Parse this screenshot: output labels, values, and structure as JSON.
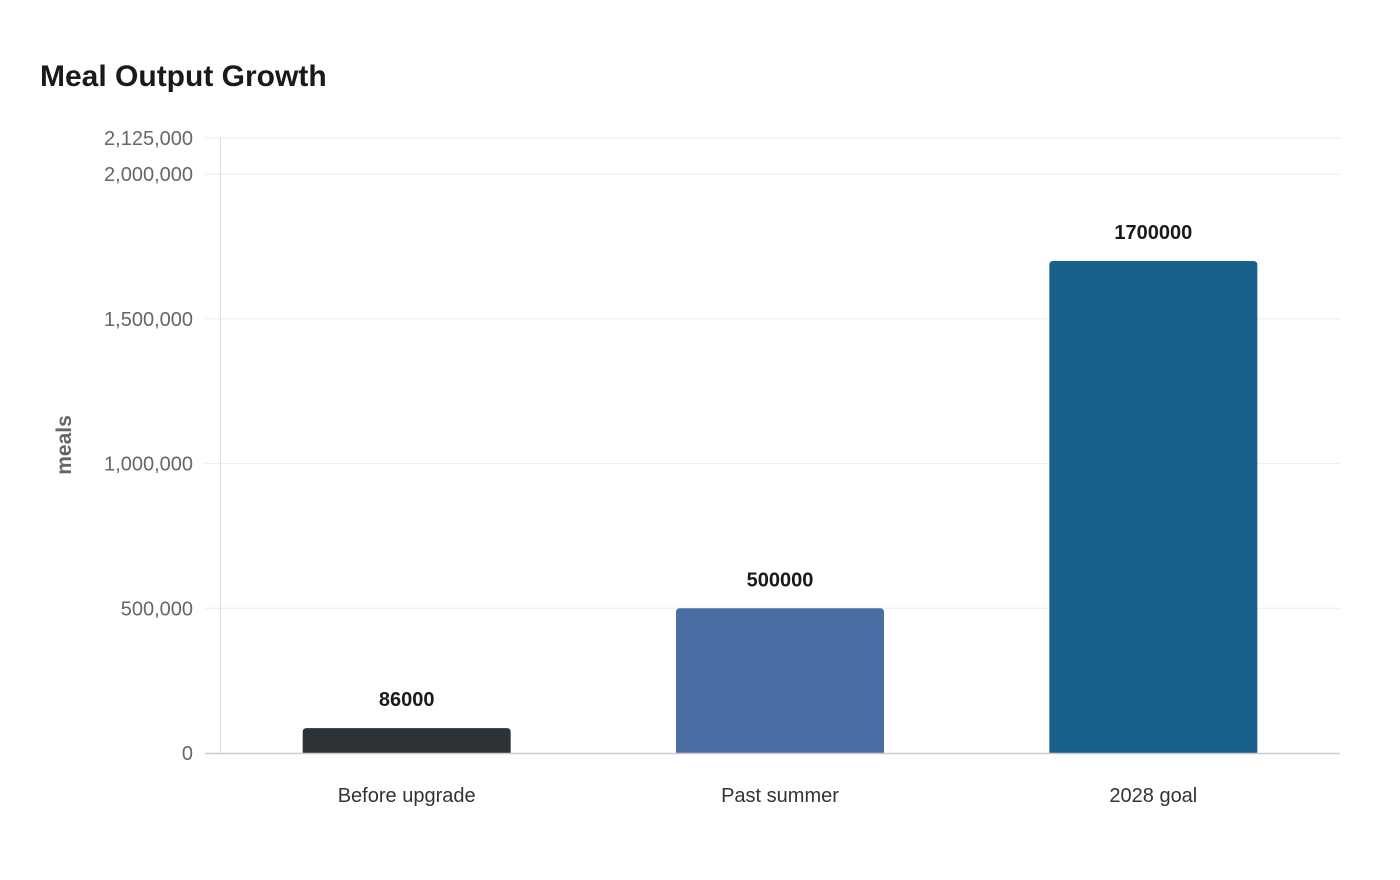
{
  "chart_data": {
    "type": "bar",
    "title": "Meal Output Growth",
    "xlabel": "",
    "ylabel": "meals",
    "categories": [
      "Before upgrade",
      "Past summer",
      "2028 goal"
    ],
    "values": [
      86000,
      500000,
      1700000
    ],
    "data_labels": [
      "86000",
      "500000",
      "1700000"
    ],
    "colors": [
      "#2d3236",
      "#4a6da3",
      "#17608a"
    ],
    "ylim": [
      0,
      2125000
    ],
    "yticks": [
      0,
      500000,
      1000000,
      1500000,
      2000000,
      2125000
    ],
    "ytick_labels": [
      "0",
      "500,000",
      "1,000,000",
      "1,500,000",
      "2,000,000",
      "2,125,000"
    ],
    "grid": true,
    "legend": "none"
  }
}
